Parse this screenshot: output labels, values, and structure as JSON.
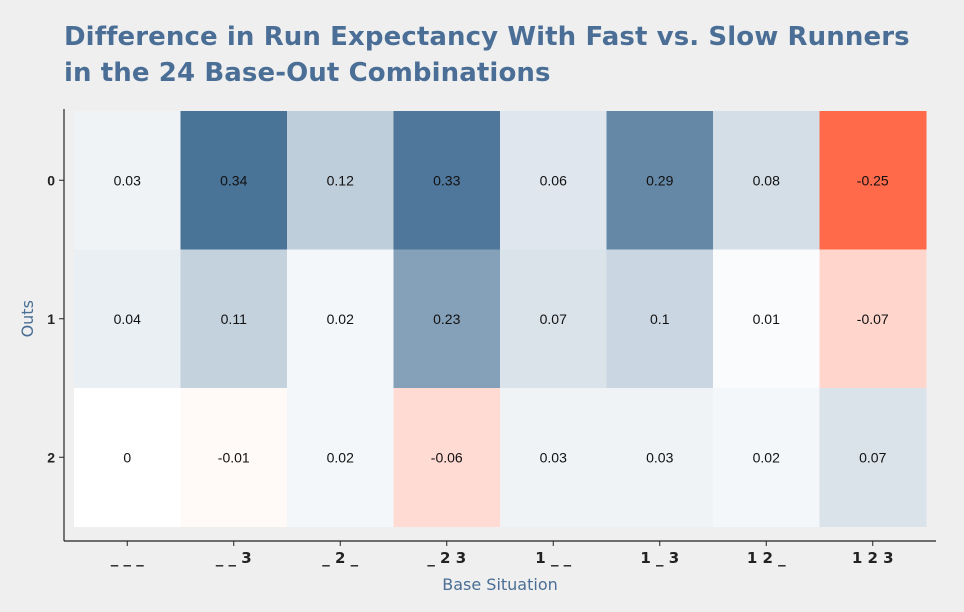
{
  "chart_data": {
    "type": "heatmap",
    "title_lines": [
      "Difference in Run Expectancy With Fast vs. Slow Runners",
      "in the 24 Base-Out Combinations"
    ],
    "xlabel": "Base Situation",
    "ylabel": "Outs",
    "x_categories": [
      "_ _ _",
      "_ _ 3",
      "_ 2 _",
      "_ 2 3",
      "1 _ _",
      "1 _ 3",
      "1 2 _",
      "1 2 3"
    ],
    "y_categories": [
      "0",
      "1",
      "2"
    ],
    "values": [
      [
        "0.03",
        "0.34",
        "0.12",
        "0.33",
        "0.06",
        "0.29",
        "0.08",
        "-0.25"
      ],
      [
        "0.04",
        "0.11",
        "0.02",
        "0.23",
        "0.07",
        "0.1",
        "0.01",
        "-0.07"
      ],
      [
        "0",
        "-0.01",
        "0.02",
        "-0.06",
        "0.03",
        "0.03",
        "0.02",
        "0.07"
      ]
    ],
    "color_scale": {
      "negative": "#ff6a4a",
      "zero": "#ffffff",
      "positive": "#4a7398",
      "min": -0.25,
      "max": 0.34
    }
  }
}
